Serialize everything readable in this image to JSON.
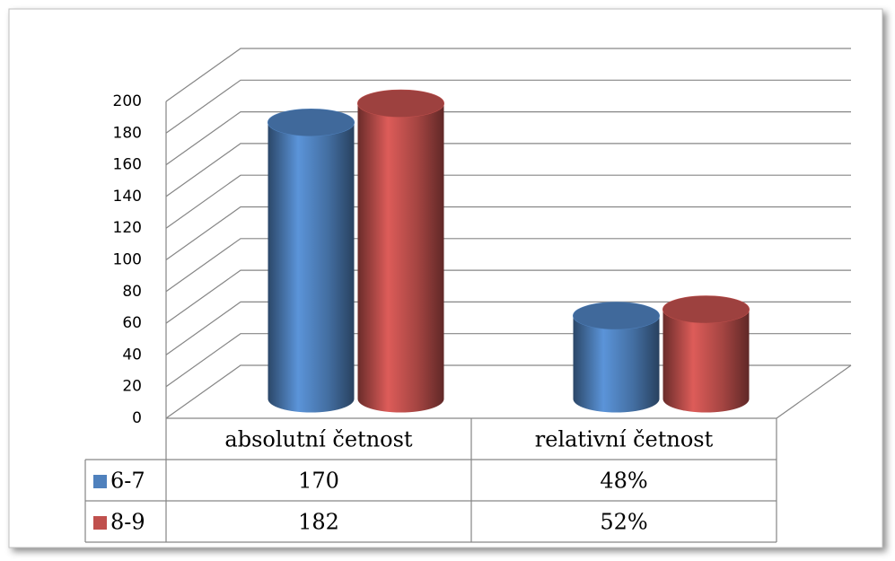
{
  "chart_data": {
    "type": "bar",
    "categories": [
      "absolutní četnost",
      "relativní četnost"
    ],
    "series": [
      {
        "name": "6-7",
        "color": "#4f81bd",
        "values": [
          170,
          48
        ],
        "value_labels": [
          "170",
          "48%"
        ]
      },
      {
        "name": "8-9",
        "color": "#c0504d",
        "values": [
          182,
          52
        ],
        "value_labels": [
          "182",
          "52%"
        ]
      }
    ],
    "ylim": [
      0,
      200
    ],
    "yticks": [
      0,
      20,
      40,
      60,
      80,
      100,
      120,
      140,
      160,
      180,
      200
    ],
    "grid": true
  }
}
